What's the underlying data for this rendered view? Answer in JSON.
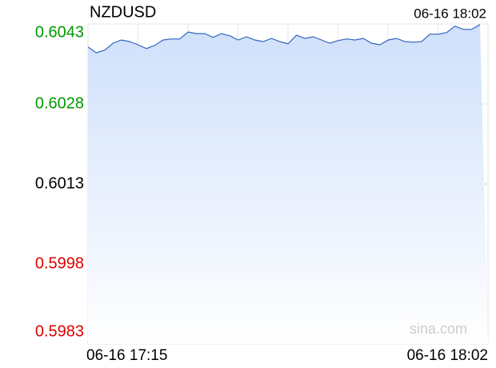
{
  "chart_data": {
    "type": "line",
    "title": "NZDUSD",
    "timestamp": "06-16 18:02",
    "watermark": "sina.com",
    "categories": [
      "06-16 17:15",
      null,
      null,
      null,
      null,
      null,
      null,
      null,
      null,
      null,
      null,
      null,
      null,
      null,
      null,
      null,
      null,
      null,
      null,
      null,
      null,
      null,
      null,
      null,
      null,
      null,
      null,
      null,
      null,
      null,
      null,
      null,
      null,
      null,
      null,
      null,
      null,
      null,
      null,
      null,
      null,
      null,
      null,
      null,
      null,
      null,
      null,
      "06-16 18:02"
    ],
    "series": [
      {
        "name": "NZDUSD",
        "color": "#3366bb",
        "fill": "#cfe0fb",
        "values": [
          0.60387,
          0.60376,
          0.60381,
          0.60394,
          0.604,
          0.60397,
          0.60391,
          0.60384,
          0.6039,
          0.604,
          0.60402,
          0.60402,
          0.60415,
          0.60412,
          0.60412,
          0.60405,
          0.60412,
          0.60408,
          0.604,
          0.60406,
          0.604,
          0.60397,
          0.60403,
          0.60397,
          0.60393,
          0.60409,
          0.60403,
          0.60406,
          0.604,
          0.60394,
          0.60399,
          0.60402,
          0.604,
          0.60403,
          0.60394,
          0.60391,
          0.604,
          0.60403,
          0.60397,
          0.60396,
          0.60397,
          0.60411,
          0.60411,
          0.60414,
          0.60426,
          0.6042,
          0.6042,
          0.60429
        ]
      }
    ],
    "ylim": [
      0.5983,
      0.6043
    ],
    "yticks": [
      0.6043,
      0.6028,
      0.6013,
      0.5998,
      0.5983
    ],
    "tick_colors": {
      "above": "#009900",
      "equal": "#000000",
      "below": "#dd0000"
    },
    "grid": true
  }
}
